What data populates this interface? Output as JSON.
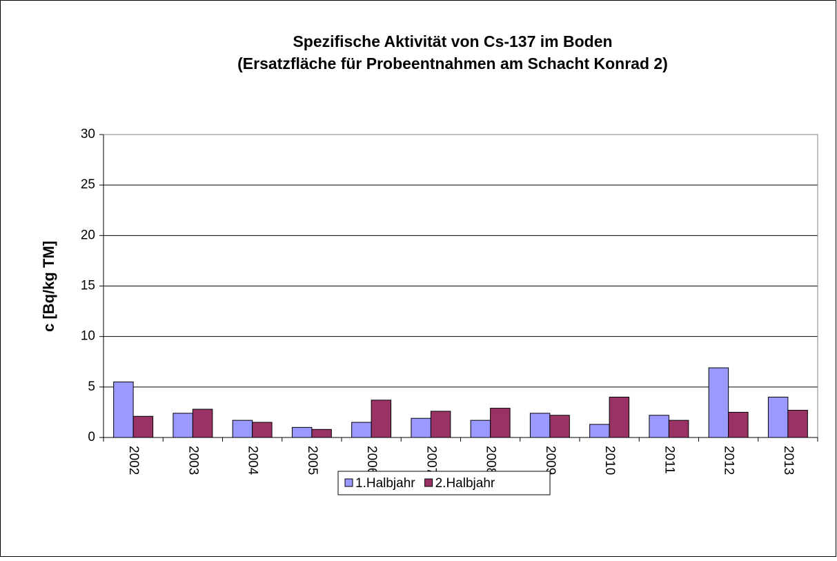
{
  "chart_data": {
    "type": "bar",
    "title": "Spezifische Aktivität von Cs-137 im Boden",
    "subtitle": "(Ersatzfläche für Probeentnahmen am Schacht Konrad 2)",
    "y_label": "c [Bq/kg TM]",
    "categories": [
      "2002",
      "2003",
      "2004",
      "2005",
      "2006",
      "2007",
      "2008",
      "2009",
      "2010",
      "2011",
      "2012",
      "2013"
    ],
    "series": [
      {
        "name": "1.Halbjahr",
        "color": "#9999ff",
        "values": [
          5.5,
          2.4,
          1.7,
          1.0,
          1.5,
          1.9,
          1.7,
          2.4,
          1.3,
          2.2,
          6.9,
          4.0
        ]
      },
      {
        "name": "2.Halbjahr",
        "color": "#993366",
        "values": [
          2.1,
          2.8,
          1.5,
          0.8,
          3.7,
          2.6,
          2.9,
          2.2,
          4.0,
          1.7,
          2.5,
          2.7
        ]
      }
    ],
    "ylim": [
      0,
      30
    ],
    "yticks": [
      0,
      5,
      10,
      15,
      20,
      25,
      30
    ],
    "grid": true,
    "legend": "bottom"
  }
}
